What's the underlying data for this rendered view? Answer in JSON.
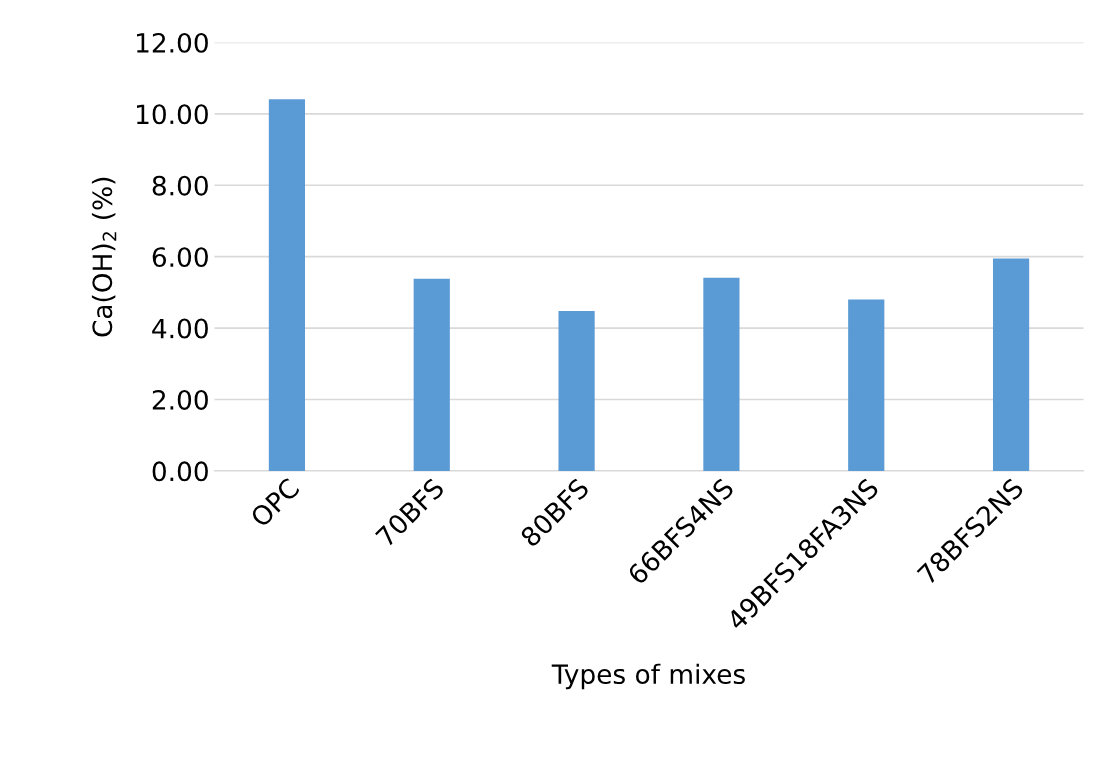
{
  "chart_data": {
    "type": "bar",
    "xlabel": "Types of mixes",
    "ylabel": "Ca(OH)$_{2}$ (%)",
    "categories": [
      "OPC",
      "70BFS",
      "80BFS",
      "66BFS4NS",
      "49BFS18FA3NS",
      "78BFS2NS"
    ],
    "values": [
      10.41,
      5.38,
      4.48,
      5.41,
      4.8,
      5.95
    ],
    "color": "#5b9bd5",
    "ylim": [
      0,
      12
    ],
    "yticks": [
      {
        "value": 0,
        "label": "0.00"
      },
      {
        "value": 2,
        "label": "2.00"
      },
      {
        "value": 4,
        "label": "4.00"
      },
      {
        "value": 6,
        "label": "6.00"
      },
      {
        "value": 8,
        "label": "8.00"
      },
      {
        "value": 10,
        "label": "10.00"
      },
      {
        "value": 12,
        "label": "12.00"
      }
    ],
    "grid": "y"
  }
}
